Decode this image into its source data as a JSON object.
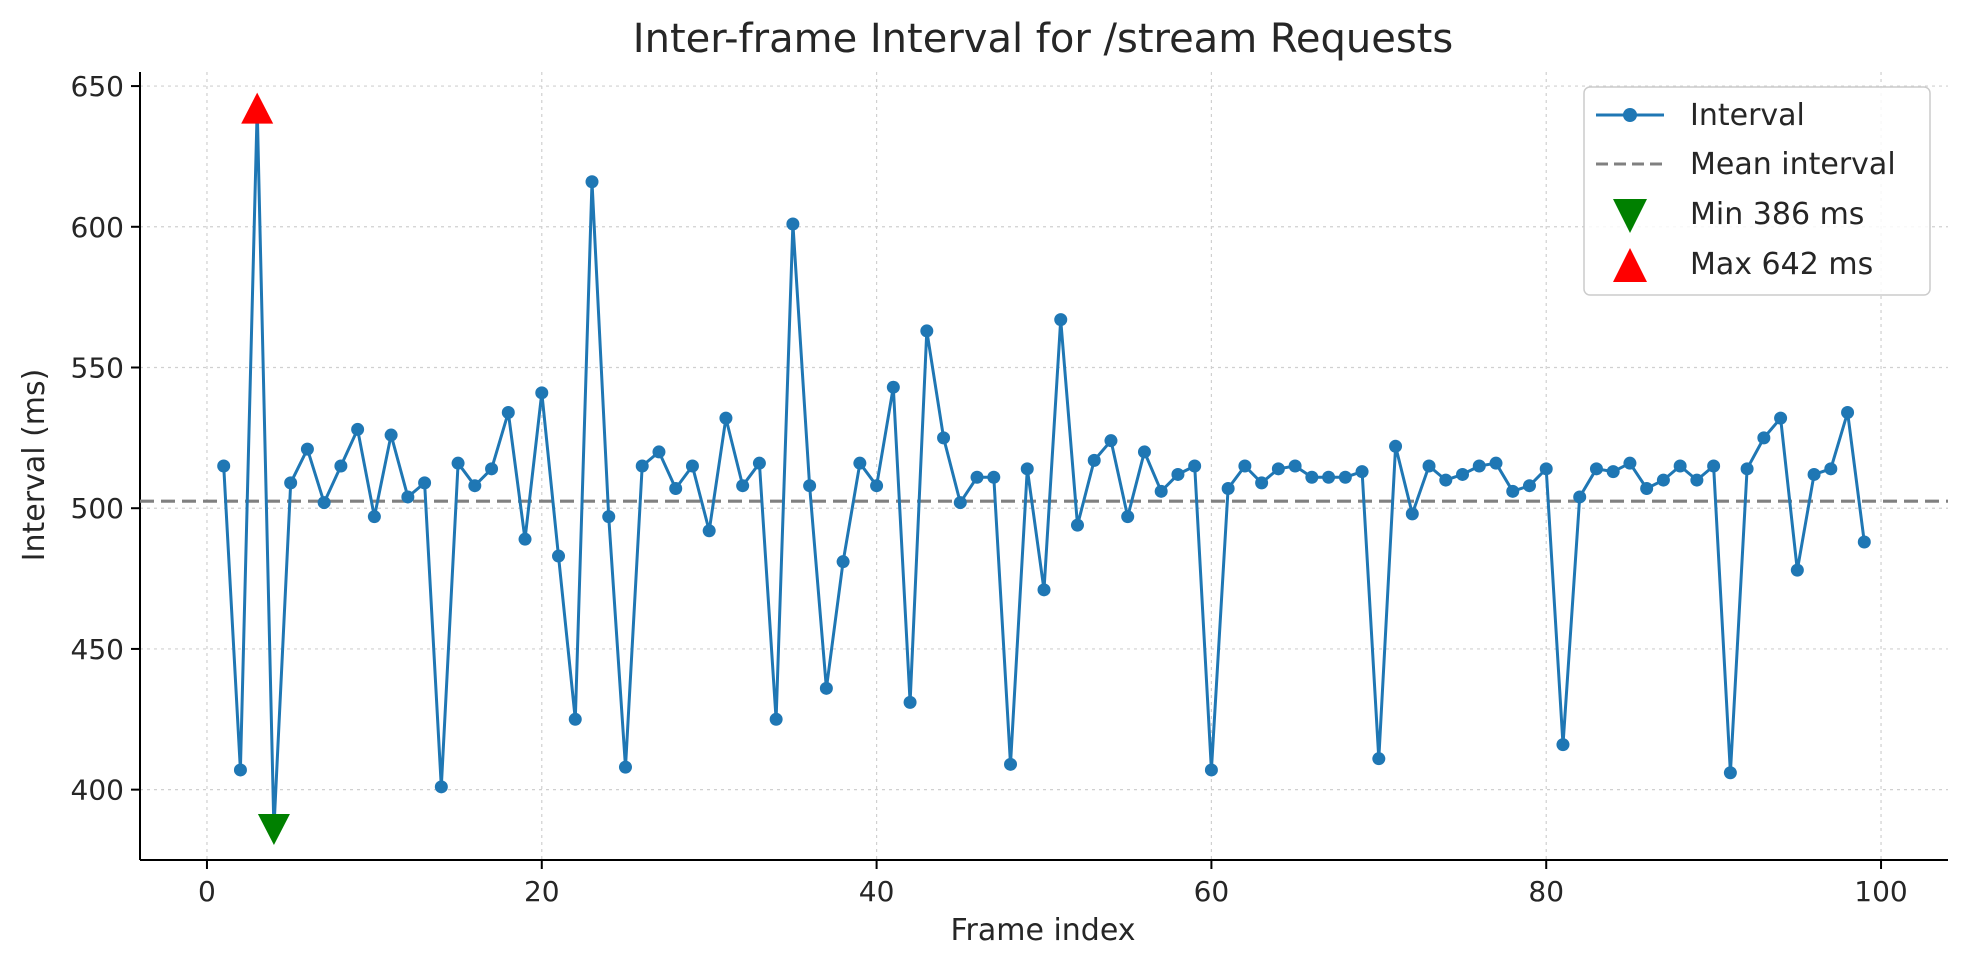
{
  "chart_data": {
    "type": "line",
    "title": "Inter-frame Interval for /stream Requests",
    "xlabel": "Frame index",
    "ylabel": "Interval (ms)",
    "xlim": [
      -4,
      104
    ],
    "ylim": [
      375,
      655
    ],
    "x_ticks": [
      0,
      20,
      40,
      60,
      80,
      100
    ],
    "y_ticks": [
      400,
      450,
      500,
      550,
      600,
      650
    ],
    "grid": true,
    "legend_position": "top-right",
    "series": [
      {
        "name": "Interval",
        "color": "#1f77b4",
        "x": [
          1,
          2,
          3,
          4,
          5,
          6,
          7,
          8,
          9,
          10,
          11,
          12,
          13,
          14,
          15,
          16,
          17,
          18,
          19,
          20,
          21,
          22,
          23,
          24,
          25,
          26,
          27,
          28,
          29,
          30,
          31,
          32,
          33,
          34,
          35,
          36,
          37,
          38,
          39,
          40,
          41,
          42,
          43,
          44,
          45,
          46,
          47,
          48,
          49,
          50,
          51,
          52,
          53,
          54,
          55,
          56,
          57,
          58,
          59,
          60,
          61,
          62,
          63,
          64,
          65,
          66,
          67,
          68,
          69,
          70,
          71,
          72,
          73,
          74,
          75,
          76,
          77,
          78,
          79,
          80,
          81,
          82,
          83,
          84,
          85,
          86,
          87,
          88,
          89,
          90,
          91,
          92,
          93,
          94,
          95,
          96,
          97,
          98,
          99
        ],
        "y": [
          515,
          407,
          642,
          386,
          509,
          521,
          502,
          515,
          528,
          497,
          526,
          504,
          509,
          401,
          516,
          508,
          514,
          534,
          489,
          541,
          483,
          425,
          616,
          497,
          408,
          515,
          520,
          507,
          515,
          492,
          532,
          508,
          516,
          425,
          601,
          508,
          436,
          481,
          516,
          508,
          543,
          431,
          563,
          525,
          502,
          511,
          511,
          409,
          514,
          471,
          567,
          494,
          517,
          524,
          497,
          520,
          506,
          512,
          515,
          407,
          507,
          515,
          509,
          514,
          515,
          511,
          511,
          511,
          513,
          411,
          522,
          498,
          515,
          510,
          512,
          515,
          516,
          506,
          508,
          514,
          416,
          504,
          514,
          513,
          516,
          507,
          510,
          515,
          510,
          515,
          406,
          514,
          525,
          532,
          478,
          512,
          514,
          534,
          488
        ]
      },
      {
        "name": "Mean interval",
        "color": "#808080",
        "value": 502.5
      }
    ],
    "min_marker": {
      "label": "Min 386 ms",
      "x": 4,
      "y": 386,
      "color": "#008000"
    },
    "max_marker": {
      "label": "Max 642 ms",
      "x": 3,
      "y": 642,
      "color": "#ff0000"
    }
  }
}
